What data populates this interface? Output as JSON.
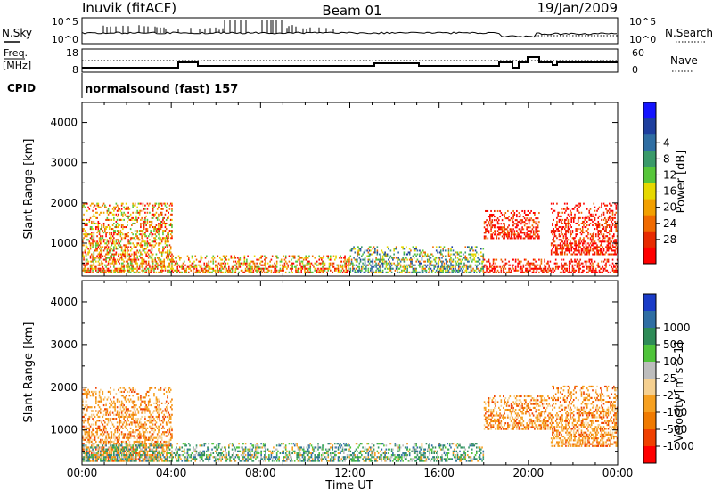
{
  "header": {
    "station": "Inuvik (fitACF)",
    "beam": "Beam 01",
    "date": "19/Jan/2009"
  },
  "noise_panel": {
    "left_label": "N.Sky",
    "left_ticks": [
      "10^5",
      "10^0"
    ],
    "right_label": "N.Search",
    "right_ticks": [
      "10^5",
      "10^0"
    ]
  },
  "freq_panel": {
    "left_label_1": "Freq.",
    "left_label_2": "[MHz]",
    "left_ticks": [
      "18",
      "8"
    ],
    "right_label": "Nave",
    "right_ticks": [
      "60",
      "0"
    ]
  },
  "cpid_panel": {
    "label": "CPID",
    "text": "normalsound (fast) 157"
  },
  "time_axis": {
    "label": "Time UT",
    "ticks": [
      "00:00",
      "04:00",
      "08:00",
      "12:00",
      "16:00",
      "20:00",
      "00:00"
    ]
  },
  "chart_data": [
    {
      "type": "heatmap",
      "name": "power",
      "xlabel": "Time UT",
      "ylabel": "Slant Range [km]",
      "ylim": [
        180,
        4500
      ],
      "yticks": [
        "1000",
        "2000",
        "3000",
        "4000"
      ],
      "colorbar": {
        "label": "Power [dB]",
        "ticks": [
          "4",
          "8",
          "12",
          "16",
          "20",
          "24",
          "28"
        ],
        "colors": [
          "#1414ff",
          "#1e3f9e",
          "#2f6ea3",
          "#3a9a6a",
          "#57c63a",
          "#e6d800",
          "#f2a000",
          "#f06a00",
          "#e82a00",
          "#ff0000"
        ]
      },
      "scatter_bands": [
        {
          "t0": 0.0,
          "t1": 4.0,
          "r0": 250,
          "r1": 2000,
          "dominant": "red-orange"
        },
        {
          "t0": 4.0,
          "t1": 12.0,
          "r0": 250,
          "r1": 700,
          "dominant": "red-orange"
        },
        {
          "t0": 12.0,
          "t1": 18.0,
          "r0": 250,
          "r1": 900,
          "dominant": "green-blue"
        },
        {
          "t0": 18.0,
          "t1": 24.0,
          "r0": 250,
          "r1": 600,
          "dominant": "red"
        },
        {
          "t0": 18.0,
          "t1": 20.5,
          "r0": 1100,
          "r1": 1800,
          "dominant": "red"
        },
        {
          "t0": 21.0,
          "t1": 24.0,
          "r0": 700,
          "r1": 2000,
          "dominant": "red"
        }
      ]
    },
    {
      "type": "heatmap",
      "name": "velocity",
      "xlabel": "Time UT",
      "ylabel": "Slant Range [km]",
      "ylim": [
        180,
        4500
      ],
      "yticks": [
        "1000",
        "2000",
        "3000",
        "4000"
      ],
      "colorbar": {
        "label": "Velocity [m s^-1]",
        "ticks": [
          "1000",
          "500",
          "100",
          "25",
          "-25",
          "-100",
          "-500",
          "-1000"
        ],
        "colors": [
          "#1a3cc8",
          "#2f6ea3",
          "#2e8b57",
          "#4fc43a",
          "#bdbdbd",
          "#f5d090",
          "#f6a020",
          "#f07a00",
          "#f04000",
          "#ff0000"
        ]
      },
      "scatter_bands": [
        {
          "t0": 0.0,
          "t1": 4.0,
          "r0": 250,
          "r1": 2000,
          "dominant": "orange"
        },
        {
          "t0": 0.0,
          "t1": 18.0,
          "r0": 250,
          "r1": 700,
          "dominant": "green"
        },
        {
          "t0": 18.0,
          "t1": 21.0,
          "r0": 1000,
          "r1": 1800,
          "dominant": "orange"
        },
        {
          "t0": 21.0,
          "t1": 24.0,
          "r0": 600,
          "r1": 2000,
          "dominant": "orange"
        }
      ]
    }
  ]
}
